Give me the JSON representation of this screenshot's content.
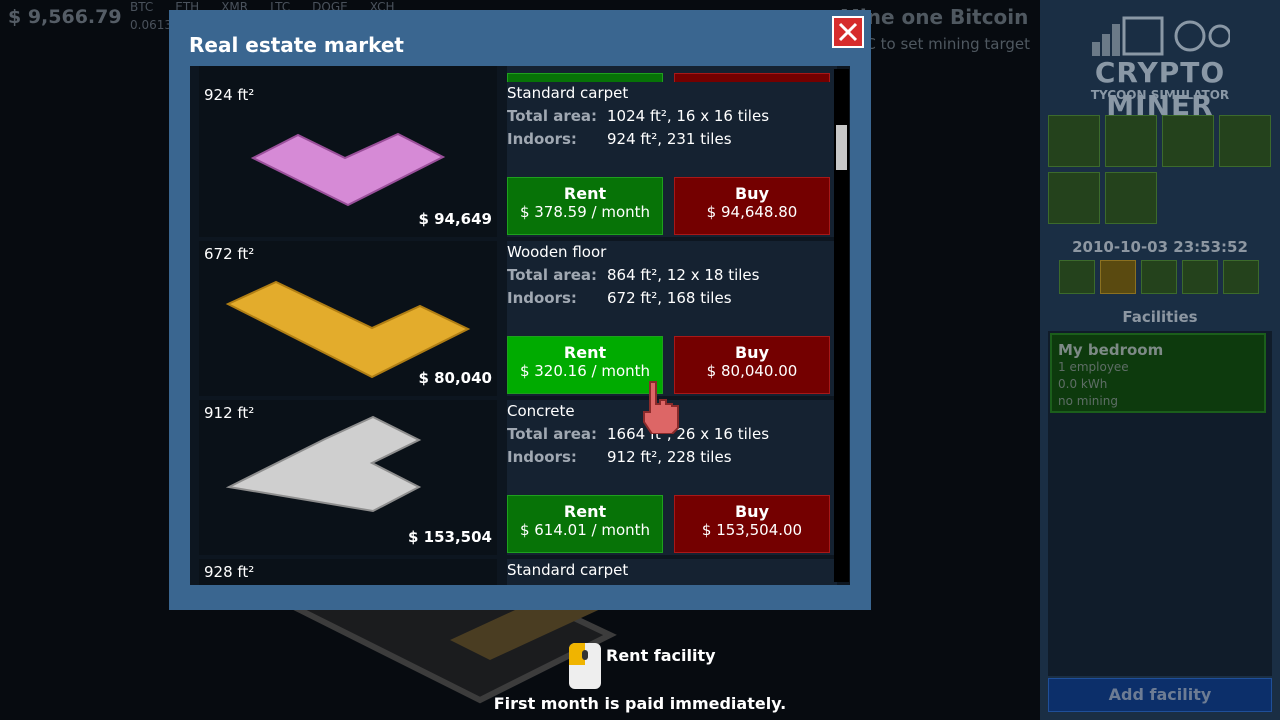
{
  "hud": {
    "balance": "$ 9,566.79",
    "coin_amount": "0.0613",
    "coins": [
      "BTC",
      "ETH",
      "XMR",
      "LTC",
      "DOGE",
      "XCH"
    ],
    "target_title": "Mine one Bitcoin",
    "target_hint": "C to set mining target"
  },
  "sidebar": {
    "logo_title": "CRYPTO MINER",
    "logo_subtitle": "TYCOON SIMULATOR",
    "datetime": "2010-10-03 23:53:52",
    "facilities_heading": "Facilities",
    "facility": {
      "name": "My bedroom",
      "employees": "1 employee",
      "power": "0.0 kWh",
      "mining": "no mining"
    },
    "add_button": "Add facility"
  },
  "modal": {
    "title": "Real estate market",
    "listings": [
      {
        "size": "924 ft²",
        "price": "$ 94,649",
        "floor": "Standard carpet",
        "total_area_label": "Total area:",
        "total_area": "1024 ft², 16 x 16 tiles",
        "indoors_label": "Indoors:",
        "indoors": "924 ft², 231 tiles",
        "rent_label": "Rent",
        "rent_price": "$ 378.59 / month",
        "buy_label": "Buy",
        "buy_price": "$ 94,648.80"
      },
      {
        "size": "672 ft²",
        "price": "$ 80,040",
        "floor": "Wooden floor",
        "total_area_label": "Total area:",
        "total_area": "864 ft², 12 x 18 tiles",
        "indoors_label": "Indoors:",
        "indoors": "672 ft², 168 tiles",
        "rent_label": "Rent",
        "rent_price": "$ 320.16 / month",
        "buy_label": "Buy",
        "buy_price": "$ 80,040.00"
      },
      {
        "size": "912 ft²",
        "price": "$ 153,504",
        "floor": "Concrete",
        "total_area_label": "Total area:",
        "total_area": "1664 ft², 26 x 16 tiles",
        "indoors_label": "Indoors:",
        "indoors": "912 ft², 228 tiles",
        "rent_label": "Rent",
        "rent_price": "$ 614.01 / month",
        "buy_label": "Buy",
        "buy_price": "$ 153,504.00"
      },
      {
        "size": "928 ft²",
        "floor": "Standard carpet"
      }
    ]
  },
  "tooltip": {
    "action": "Rent facility",
    "note": "First month is paid immediately."
  }
}
